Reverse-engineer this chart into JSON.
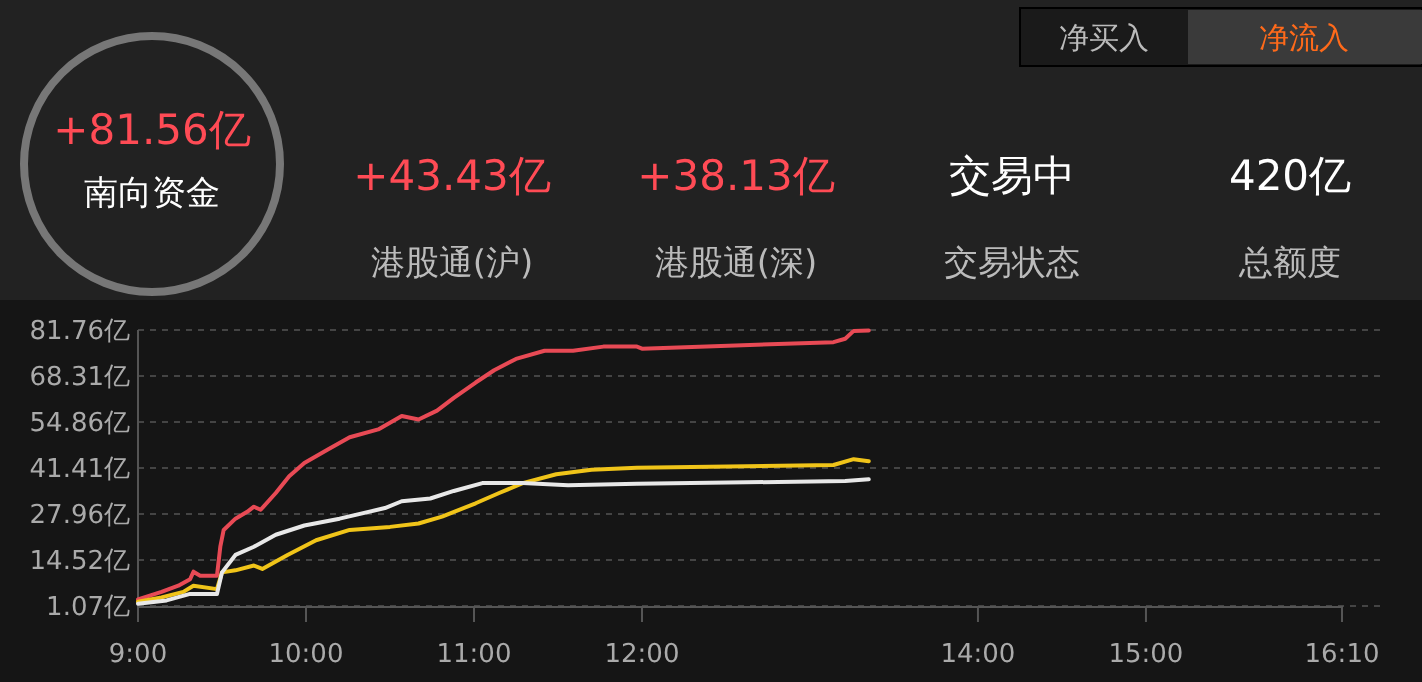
{
  "chart_data": [
    {
      "type": "other",
      "annotations": [
        "净买入",
        "净流入",
        "+81.56亿",
        "南向资金",
        "+43.43亿",
        "港股通(沪)",
        "+38.13亿",
        "港股通(深)",
        "交易中",
        "交易状态",
        "420亿",
        "总额度"
      ]
    },
    {
      "type": "line",
      "grid": "y",
      "xlim": [
        9,
        16.167
      ],
      "xticks": [
        {
          "value": 9,
          "label": "9:00"
        },
        {
          "value": 10,
          "label": "10:00"
        },
        {
          "value": 11,
          "label": "11:00"
        },
        {
          "value": 12,
          "label": "12:00"
        },
        {
          "value": 14,
          "label": "14:00"
        },
        {
          "value": 15,
          "label": "15:00"
        },
        {
          "value": 16.167,
          "label": "16:10"
        }
      ],
      "ylim": [
        1.07,
        81.76
      ],
      "yticks": [
        {
          "value": 1.07,
          "label": "1.07亿"
        },
        {
          "value": 14.52,
          "label": "14.52亿"
        },
        {
          "value": 27.96,
          "label": "27.96亿"
        },
        {
          "value": 41.41,
          "label": "41.41亿"
        },
        {
          "value": 54.86,
          "label": "54.86亿"
        },
        {
          "value": 68.31,
          "label": "68.31亿"
        },
        {
          "value": 81.76,
          "label": "81.76亿"
        }
      ],
      "series": [
        {
          "color": "#e84a55",
          "x": [
            9,
            9.14,
            9.24,
            9.31,
            9.33,
            9.37,
            9.47,
            9.49,
            9.51,
            9.58,
            9.65,
            9.69,
            9.73,
            9.82,
            9.9,
            9.99,
            10.13,
            10.26,
            10.43,
            10.57,
            10.67,
            10.78,
            10.88,
            11.01,
            11.12,
            11.25,
            11.42,
            11.59,
            11.77,
            11.97,
            12.0,
            13.14,
            13.21,
            13.26,
            13.35
          ],
          "values": [
            3.0,
            5.2,
            7.0,
            8.9,
            11.1,
            9.9,
            9.9,
            18.4,
            23.3,
            26.6,
            28.6,
            30.1,
            29.2,
            34.1,
            39.0,
            42.9,
            46.8,
            50.4,
            52.7,
            56.6,
            55.6,
            58.2,
            61.9,
            66.4,
            70.0,
            73.3,
            75.7,
            75.7,
            76.9,
            76.9,
            76.3,
            78.2,
            79.2,
            81.5,
            81.6
          ]
        },
        {
          "color": "#f0c419",
          "x": [
            9,
            9.14,
            9.27,
            9.33,
            9.47,
            9.5,
            9.58,
            9.69,
            9.74,
            9.89,
            10.06,
            10.26,
            10.5,
            10.67,
            10.81,
            11.01,
            11.15,
            11.29,
            11.49,
            11.7,
            11.97,
            13.14,
            13.26,
            13.35
          ],
          "values": [
            2.3,
            3.6,
            5.2,
            7.0,
            6.0,
            10.9,
            11.5,
            12.9,
            11.9,
            16.0,
            20.3,
            23.3,
            24.2,
            25.2,
            27.2,
            31.1,
            34.1,
            37.0,
            39.6,
            40.9,
            41.5,
            42.3,
            44.0,
            43.4
          ]
        },
        {
          "color": "#e8e8e8",
          "x": [
            9,
            9.17,
            9.31,
            9.34,
            9.47,
            9.5,
            9.58,
            9.69,
            9.82,
            9.99,
            10.2,
            10.47,
            10.57,
            10.74,
            10.88,
            11.05,
            11.29,
            11.56,
            11.97,
            13.21,
            13.35
          ],
          "values": [
            1.7,
            2.7,
            4.6,
            4.6,
            4.6,
            10.9,
            16.0,
            18.4,
            21.9,
            24.6,
            26.6,
            29.7,
            31.7,
            32.5,
            34.7,
            37.0,
            37.0,
            36.4,
            36.8,
            37.6,
            38.1
          ]
        }
      ]
    }
  ]
}
